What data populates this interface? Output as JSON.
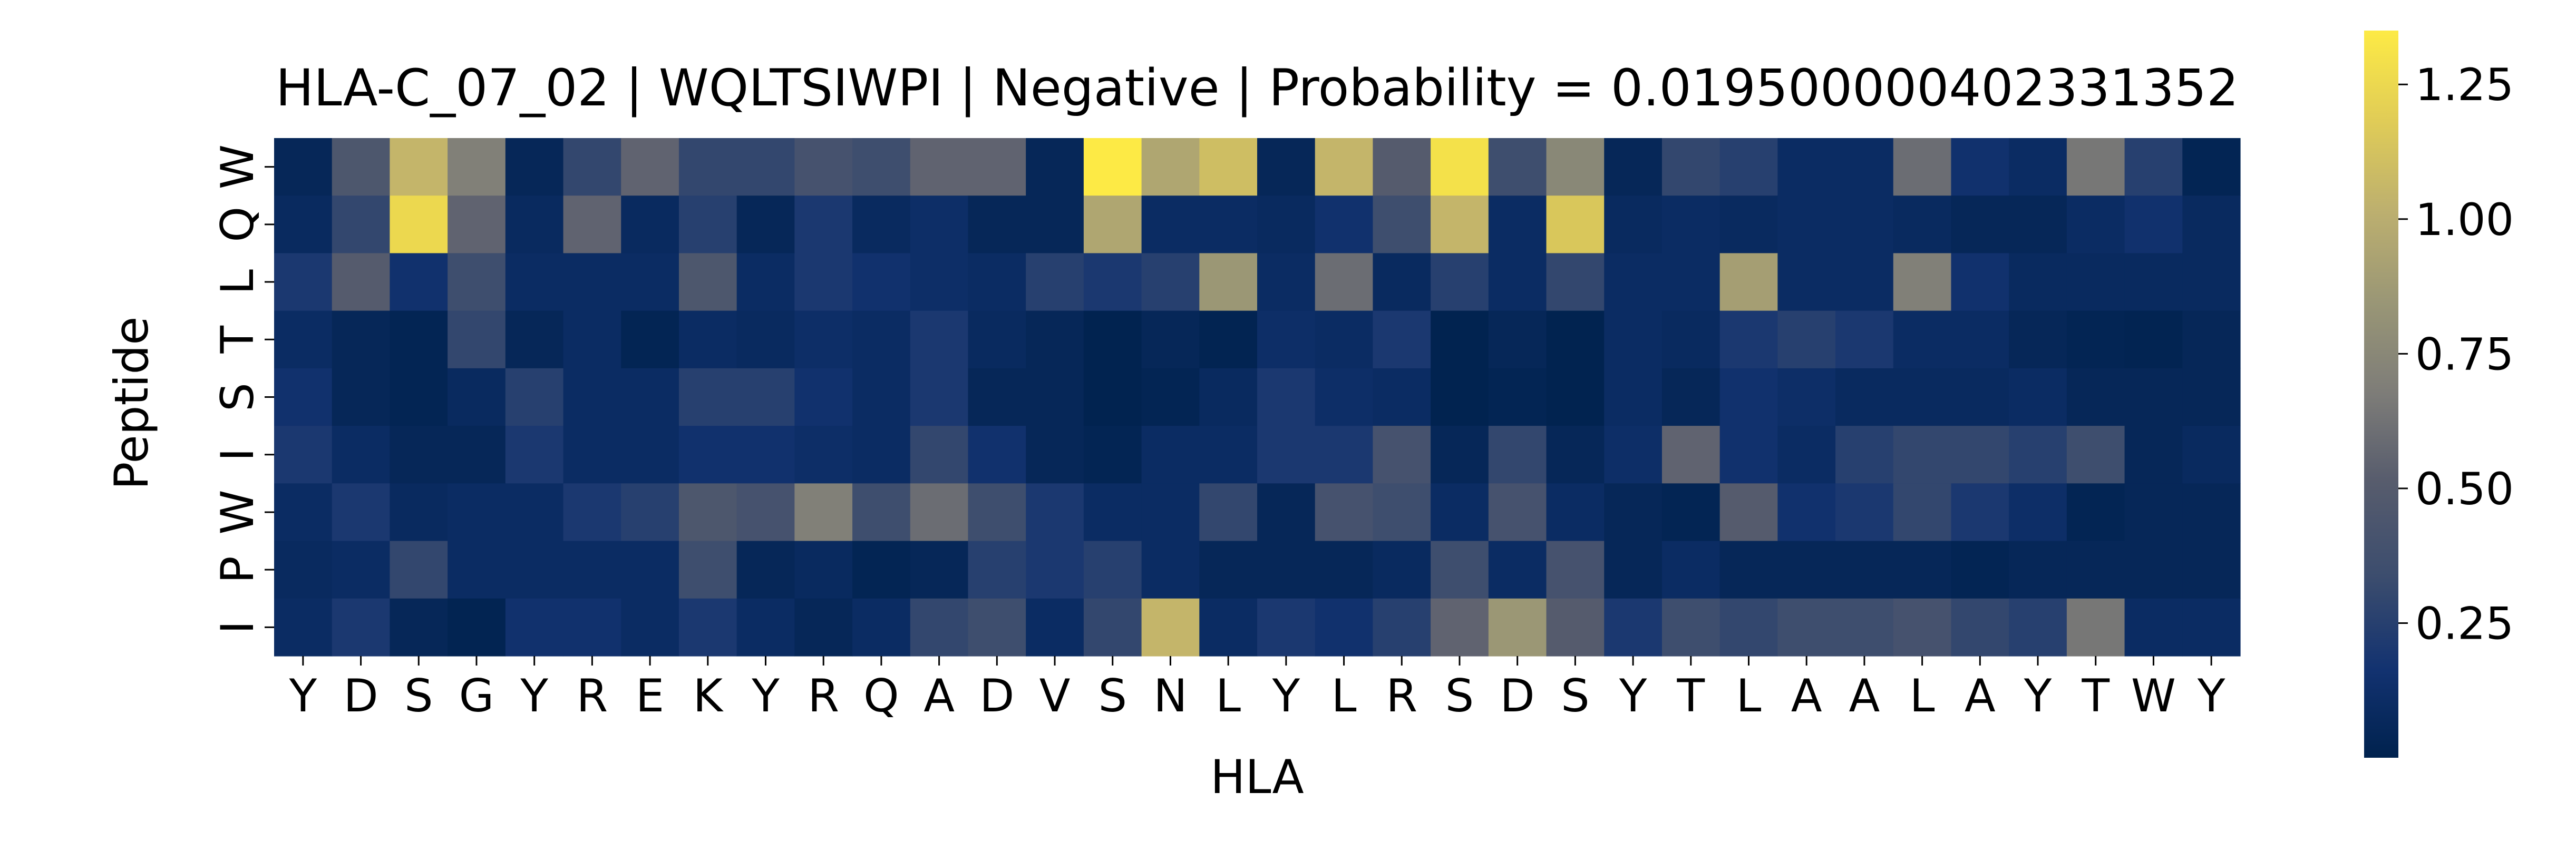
{
  "chart_data": {
    "type": "heatmap",
    "title": "HLA-C_07_02 | WQLTSIWPI | Negative | Probability = 0.019500000402331352",
    "xlabel": "HLA",
    "ylabel": "Peptide",
    "x_categories": [
      "Y",
      "D",
      "S",
      "G",
      "Y",
      "R",
      "E",
      "K",
      "Y",
      "R",
      "Q",
      "A",
      "D",
      "V",
      "S",
      "N",
      "L",
      "Y",
      "L",
      "R",
      "S",
      "D",
      "S",
      "Y",
      "T",
      "L",
      "A",
      "A",
      "L",
      "A",
      "Y",
      "T",
      "W",
      "Y"
    ],
    "y_categories": [
      "W",
      "Q",
      "L",
      "T",
      "S",
      "I",
      "W",
      "P",
      "I"
    ],
    "colormap": "cividis",
    "colorbar": {
      "vmin": 0.0,
      "vmax": 1.35,
      "ticks": [
        0.25,
        0.5,
        0.75,
        1.0,
        1.25
      ],
      "tick_labels": [
        "0.25",
        "0.50",
        "0.75",
        "1.00",
        "1.25"
      ]
    },
    "values": [
      [
        0.05,
        0.45,
        1.05,
        0.7,
        0.05,
        0.3,
        0.55,
        0.3,
        0.3,
        0.4,
        0.35,
        0.55,
        0.55,
        0.05,
        1.35,
        0.95,
        1.1,
        0.05,
        1.05,
        0.5,
        1.3,
        0.35,
        0.75,
        0.05,
        0.3,
        0.25,
        0.1,
        0.1,
        0.6,
        0.15,
        0.1,
        0.65,
        0.25,
        0.03
      ],
      [
        0.08,
        0.3,
        1.25,
        0.55,
        0.08,
        0.55,
        0.08,
        0.25,
        0.05,
        0.2,
        0.08,
        0.12,
        0.05,
        0.05,
        0.95,
        0.1,
        0.1,
        0.08,
        0.15,
        0.35,
        1.05,
        0.1,
        1.15,
        0.08,
        0.1,
        0.08,
        0.1,
        0.1,
        0.08,
        0.05,
        0.05,
        0.1,
        0.15,
        0.08
      ],
      [
        0.2,
        0.5,
        0.15,
        0.35,
        0.1,
        0.1,
        0.1,
        0.45,
        0.1,
        0.2,
        0.15,
        0.12,
        0.1,
        0.25,
        0.2,
        0.25,
        0.85,
        0.1,
        0.6,
        0.08,
        0.25,
        0.1,
        0.3,
        0.1,
        0.1,
        0.9,
        0.1,
        0.1,
        0.7,
        0.15,
        0.08,
        0.08,
        0.08,
        0.08
      ],
      [
        0.1,
        0.05,
        0.03,
        0.3,
        0.05,
        0.1,
        0.03,
        0.1,
        0.08,
        0.12,
        0.1,
        0.2,
        0.08,
        0.05,
        0.01,
        0.05,
        0.02,
        0.12,
        0.1,
        0.2,
        0.01,
        0.05,
        0.01,
        0.1,
        0.08,
        0.2,
        0.25,
        0.2,
        0.1,
        0.1,
        0.05,
        0.03,
        0.02,
        0.05
      ],
      [
        0.15,
        0.05,
        0.03,
        0.08,
        0.25,
        0.1,
        0.1,
        0.25,
        0.25,
        0.15,
        0.1,
        0.2,
        0.05,
        0.05,
        0.01,
        0.03,
        0.08,
        0.2,
        0.12,
        0.1,
        0.01,
        0.03,
        0.01,
        0.1,
        0.05,
        0.15,
        0.12,
        0.08,
        0.08,
        0.08,
        0.1,
        0.05,
        0.05,
        0.05
      ],
      [
        0.2,
        0.1,
        0.05,
        0.05,
        0.2,
        0.1,
        0.1,
        0.15,
        0.15,
        0.12,
        0.1,
        0.3,
        0.15,
        0.05,
        0.03,
        0.1,
        0.1,
        0.2,
        0.2,
        0.4,
        0.05,
        0.3,
        0.05,
        0.12,
        0.55,
        0.15,
        0.1,
        0.25,
        0.3,
        0.3,
        0.25,
        0.35,
        0.05,
        0.08
      ],
      [
        0.1,
        0.2,
        0.08,
        0.1,
        0.1,
        0.2,
        0.25,
        0.45,
        0.4,
        0.7,
        0.35,
        0.6,
        0.35,
        0.2,
        0.1,
        0.1,
        0.3,
        0.05,
        0.4,
        0.35,
        0.1,
        0.4,
        0.1,
        0.05,
        0.03,
        0.5,
        0.15,
        0.2,
        0.3,
        0.2,
        0.12,
        0.03,
        0.05,
        0.05
      ],
      [
        0.08,
        0.1,
        0.3,
        0.1,
        0.1,
        0.1,
        0.1,
        0.35,
        0.05,
        0.08,
        0.03,
        0.05,
        0.25,
        0.2,
        0.25,
        0.1,
        0.05,
        0.05,
        0.05,
        0.08,
        0.35,
        0.1,
        0.4,
        0.05,
        0.1,
        0.05,
        0.05,
        0.05,
        0.05,
        0.03,
        0.05,
        0.05,
        0.05,
        0.05
      ],
      [
        0.1,
        0.2,
        0.05,
        0.02,
        0.15,
        0.15,
        0.1,
        0.2,
        0.1,
        0.05,
        0.1,
        0.3,
        0.35,
        0.1,
        0.3,
        1.05,
        0.1,
        0.2,
        0.15,
        0.25,
        0.55,
        0.85,
        0.5,
        0.2,
        0.35,
        0.3,
        0.35,
        0.35,
        0.4,
        0.3,
        0.25,
        0.65,
        0.1,
        0.1
      ]
    ]
  }
}
